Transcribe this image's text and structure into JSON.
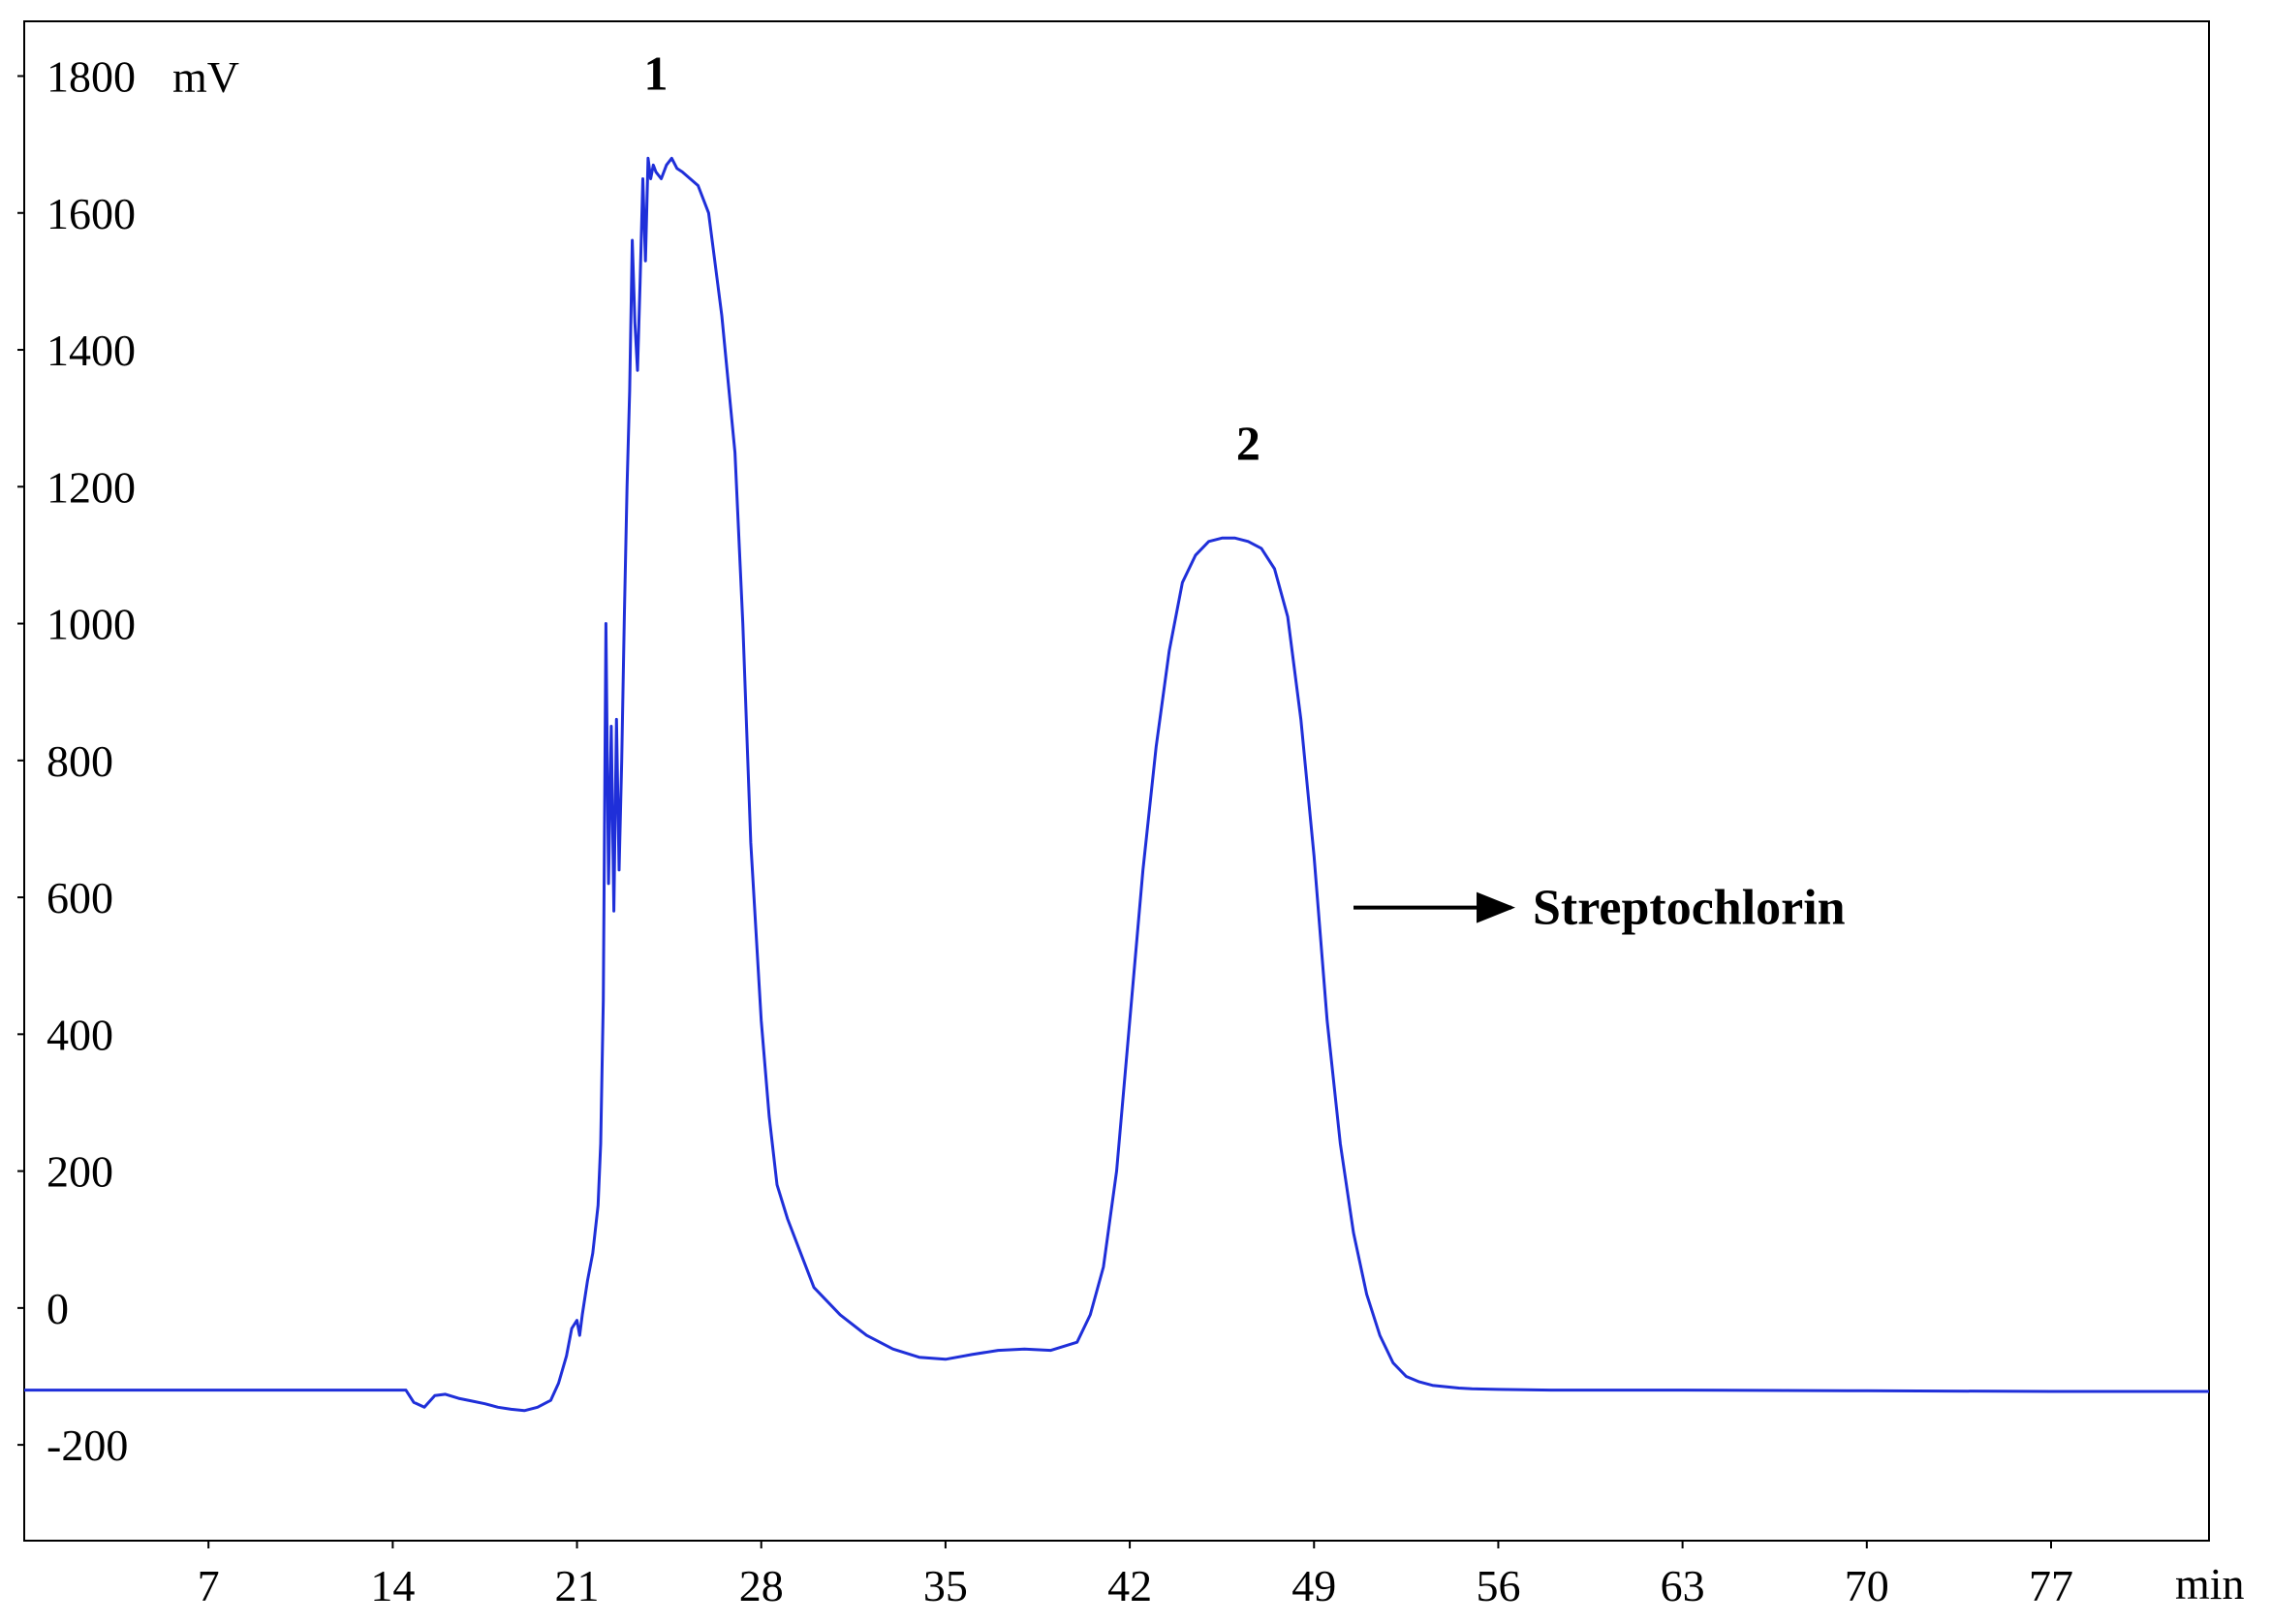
{
  "chart_data": {
    "type": "line",
    "title": "",
    "xlabel": "",
    "ylabel": "",
    "x_unit": "min",
    "y_unit": "mV",
    "xlim": [
      0,
      83
    ],
    "ylim": [
      -340,
      1880
    ],
    "x_ticks": [
      {
        "value": 7,
        "label": "7"
      },
      {
        "value": 14,
        "label": "14"
      },
      {
        "value": 21,
        "label": "21"
      },
      {
        "value": 28,
        "label": "28"
      },
      {
        "value": 35,
        "label": "35"
      },
      {
        "value": 42,
        "label": "42"
      },
      {
        "value": 49,
        "label": "49"
      },
      {
        "value": 56,
        "label": "56"
      },
      {
        "value": 63,
        "label": "63"
      },
      {
        "value": 70,
        "label": "70"
      },
      {
        "value": 77,
        "label": "77"
      }
    ],
    "y_ticks": [
      {
        "value": 1800,
        "label": "1800"
      },
      {
        "value": 1600,
        "label": "1600"
      },
      {
        "value": 1400,
        "label": "1400"
      },
      {
        "value": 1200,
        "label": "1200"
      },
      {
        "value": 1000,
        "label": "1000"
      },
      {
        "value": 800,
        "label": "800"
      },
      {
        "value": 600,
        "label": "600"
      },
      {
        "value": 400,
        "label": "400"
      },
      {
        "value": 200,
        "label": "200"
      },
      {
        "value": 0,
        "label": "0"
      },
      {
        "value": -200,
        "label": "-200"
      }
    ],
    "grid": false,
    "colors": {
      "series": "#1f2fd9",
      "axis": "#000000"
    },
    "series": [
      {
        "x": [
          0,
          14.5,
          14.8,
          15.2,
          15.6,
          16.0,
          16.5,
          17.0,
          17.5,
          18.0,
          18.5,
          19.0,
          19.5,
          20.0,
          20.3,
          20.6,
          20.8,
          21.0,
          21.1,
          21.2,
          21.4,
          21.6,
          21.8,
          21.9,
          22.0,
          22.1,
          22.2,
          22.3,
          22.4,
          22.5,
          22.6,
          22.7,
          22.8,
          22.9,
          23.0,
          23.1,
          23.2,
          23.3,
          23.4,
          23.5,
          23.6,
          23.7,
          23.8,
          23.9,
          24.0,
          24.2,
          24.4,
          24.6,
          24.8,
          25.0,
          25.3,
          25.6,
          26.0,
          26.5,
          27.0,
          27.3,
          27.6,
          28.0,
          28.3,
          28.6,
          29.0,
          29.5,
          30.0,
          31.0,
          32.0,
          33.0,
          34.0,
          35.0,
          36.0,
          37.0,
          38.0,
          39.0,
          40.0,
          40.5,
          41.0,
          41.5,
          42.0,
          42.5,
          43.0,
          43.5,
          44.0,
          44.5,
          45.0,
          45.5,
          46.0,
          46.5,
          47.0,
          47.5,
          48.0,
          48.5,
          49.0,
          49.5,
          50.0,
          50.5,
          51.0,
          51.5,
          52.0,
          52.5,
          53.0,
          53.5,
          54.0,
          54.5,
          55.0,
          56.0,
          58.0,
          63.0,
          70.0,
          77.0,
          83.0
        ],
        "y": [
          -120,
          -120,
          -138,
          -145,
          -128,
          -126,
          -132,
          -136,
          -140,
          -145,
          -148,
          -150,
          -145,
          -135,
          -110,
          -70,
          -30,
          -18,
          -40,
          -10,
          40,
          80,
          150,
          240,
          450,
          1000,
          620,
          850,
          580,
          860,
          640,
          800,
          1010,
          1200,
          1340,
          1560,
          1440,
          1370,
          1500,
          1650,
          1530,
          1680,
          1650,
          1670,
          1660,
          1650,
          1670,
          1680,
          1665,
          1660,
          1650,
          1640,
          1600,
          1450,
          1250,
          1000,
          680,
          420,
          280,
          180,
          130,
          80,
          30,
          -10,
          -40,
          -60,
          -72,
          -75,
          -68,
          -62,
          -60,
          -62,
          -50,
          -10,
          60,
          200,
          420,
          640,
          820,
          960,
          1060,
          1100,
          1120,
          1125,
          1125,
          1120,
          1110,
          1080,
          1010,
          860,
          660,
          420,
          240,
          110,
          20,
          -40,
          -80,
          -100,
          -108,
          -113,
          -115,
          -117,
          -118,
          -119,
          -120,
          -120,
          -121,
          -122,
          -122
        ]
      }
    ],
    "annotations": [
      {
        "text": "1",
        "x": 24.0,
        "y": 1780
      },
      {
        "text": "2",
        "x": 46.5,
        "y": 1240
      },
      {
        "text": "Streptochlorin",
        "arrow_from": {
          "x": 50.5,
          "y": 585
        },
        "arrow_to": {
          "x": 56.5,
          "y": 585
        }
      }
    ]
  }
}
